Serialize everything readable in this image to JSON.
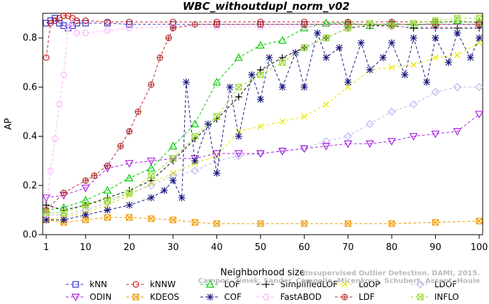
{
  "chart_data": {
    "type": "line",
    "title": "WBC_withoutdupl_norm_v02",
    "xlabel": "Neighborhood size",
    "ylabel": "AP",
    "xlim": [
      0,
      100
    ],
    "ylim": [
      0,
      0.9
    ],
    "xticks": [
      1,
      10,
      20,
      30,
      40,
      50,
      60,
      70,
      80,
      90,
      100
    ],
    "yticks": [
      0.0,
      0.2,
      0.4,
      0.6,
      0.8
    ],
    "ytick_labels": [
      "0.0",
      "0.2",
      "0.4",
      "0.6",
      "0.8"
    ],
    "grid": false,
    "legend_position": "bottom",
    "watermark": "Campos, Zimek, Sander, Campello, Micenkova, Schubert, Assent, Houle",
    "watermark_line1": "Unsupervised Outlier Detection. DAMI, 2015.",
    "series": [
      {
        "name": "kNN",
        "color": "#3333cc",
        "marker": "square",
        "x": [
          1,
          2,
          3,
          4,
          5,
          6,
          7,
          8,
          10,
          15,
          20,
          30,
          40,
          50,
          60,
          70,
          80,
          90,
          100
        ],
        "y": [
          0.86,
          0.87,
          0.88,
          0.86,
          0.85,
          0.84,
          0.85,
          0.86,
          0.86,
          0.86,
          0.855,
          0.855,
          0.855,
          0.855,
          0.855,
          0.855,
          0.855,
          0.855,
          0.855
        ]
      },
      {
        "name": "kNNW",
        "color": "#cc2222",
        "marker": "circle",
        "x": [
          1,
          2,
          3,
          4,
          5,
          6,
          7,
          8,
          10,
          15,
          20,
          30,
          40,
          50,
          60,
          70,
          80,
          90,
          100
        ],
        "y": [
          0.72,
          0.86,
          0.87,
          0.88,
          0.89,
          0.89,
          0.88,
          0.87,
          0.87,
          0.865,
          0.865,
          0.865,
          0.865,
          0.865,
          0.865,
          0.865,
          0.865,
          0.865,
          0.865
        ]
      },
      {
        "name": "LOF",
        "color": "#00cc00",
        "marker": "triangle",
        "x": [
          1,
          5,
          10,
          15,
          20,
          25,
          30,
          35,
          40,
          45,
          50,
          55,
          60,
          65,
          70,
          75,
          80,
          85,
          90,
          95,
          100
        ],
        "y": [
          0.1,
          0.11,
          0.14,
          0.18,
          0.23,
          0.27,
          0.36,
          0.45,
          0.62,
          0.72,
          0.77,
          0.79,
          0.84,
          0.86,
          0.86,
          0.85,
          0.86,
          0.85,
          0.86,
          0.87,
          0.86
        ]
      },
      {
        "name": "SimplifiedLOF",
        "color": "#000000",
        "marker": "plus",
        "x": [
          1,
          5,
          10,
          15,
          20,
          25,
          30,
          35,
          40,
          45,
          50,
          55,
          60,
          65,
          70,
          75,
          80,
          85,
          90,
          95,
          100
        ],
        "y": [
          0.12,
          0.1,
          0.12,
          0.15,
          0.18,
          0.22,
          0.3,
          0.39,
          0.47,
          0.56,
          0.67,
          0.72,
          0.76,
          0.8,
          0.84,
          0.85,
          0.85,
          0.84,
          0.84,
          0.84,
          0.84
        ]
      },
      {
        "name": "LoOP",
        "color": "#e6e600",
        "marker": "x",
        "x": [
          1,
          5,
          10,
          15,
          20,
          25,
          30,
          35,
          40,
          45,
          50,
          55,
          60,
          65,
          70,
          75,
          80,
          85,
          90,
          95,
          100
        ],
        "y": [
          0.06,
          0.07,
          0.09,
          0.12,
          0.16,
          0.21,
          0.25,
          0.29,
          0.32,
          0.42,
          0.44,
          0.46,
          0.48,
          0.53,
          0.6,
          0.67,
          0.68,
          0.69,
          0.72,
          0.73,
          0.78
        ]
      },
      {
        "name": "LDOF",
        "color": "#b8b8f0",
        "marker": "diamond",
        "x": [
          1,
          5,
          10,
          15,
          20,
          25,
          30,
          35,
          40,
          45,
          50,
          55,
          60,
          65,
          70,
          75,
          80,
          85,
          90,
          95,
          100
        ],
        "y": [
          0.08,
          0.08,
          0.1,
          0.13,
          0.17,
          0.2,
          0.24,
          0.26,
          0.3,
          0.32,
          0.33,
          0.34,
          0.35,
          0.38,
          0.4,
          0.45,
          0.5,
          0.53,
          0.58,
          0.6,
          0.6
        ]
      },
      {
        "name": "ODIN",
        "color": "#aa22dd",
        "marker": "triangle-down",
        "x": [
          1,
          5,
          10,
          15,
          20,
          25,
          30,
          35,
          40,
          45,
          50,
          55,
          60,
          65,
          70,
          75,
          80,
          85,
          90,
          95,
          100
        ],
        "y": [
          0.15,
          0.16,
          0.19,
          0.27,
          0.29,
          0.3,
          0.31,
          0.31,
          0.33,
          0.33,
          0.33,
          0.34,
          0.35,
          0.36,
          0.37,
          0.37,
          0.38,
          0.4,
          0.41,
          0.42,
          0.49
        ]
      },
      {
        "name": "KDEOS",
        "color": "#ee9900",
        "marker": "square-x",
        "x": [
          1,
          5,
          10,
          15,
          20,
          25,
          30,
          35,
          40,
          50,
          60,
          70,
          80,
          90,
          100
        ],
        "y": [
          0.06,
          0.05,
          0.06,
          0.07,
          0.07,
          0.065,
          0.06,
          0.05,
          0.045,
          0.045,
          0.045,
          0.045,
          0.045,
          0.05,
          0.055
        ]
      },
      {
        "name": "COF",
        "color": "#1a1a80",
        "marker": "asterisk",
        "x": [
          1,
          5,
          10,
          15,
          20,
          25,
          28,
          30,
          32,
          33,
          35,
          38,
          40,
          43,
          45,
          48,
          50,
          52,
          55,
          58,
          60,
          63,
          65,
          68,
          70,
          73,
          75,
          78,
          80,
          83,
          85,
          88,
          90,
          93,
          95,
          98,
          100
        ],
        "y": [
          0.06,
          0.06,
          0.08,
          0.1,
          0.12,
          0.15,
          0.18,
          0.22,
          0.15,
          0.62,
          0.3,
          0.45,
          0.25,
          0.6,
          0.4,
          0.65,
          0.55,
          0.72,
          0.6,
          0.74,
          0.6,
          0.82,
          0.72,
          0.76,
          0.62,
          0.78,
          0.67,
          0.72,
          0.78,
          0.65,
          0.8,
          0.62,
          0.8,
          0.7,
          0.82,
          0.72,
          0.8
        ]
      },
      {
        "name": "FastABOD",
        "color": "#ffb3ff",
        "marker": "circle",
        "x": [
          1,
          2,
          3,
          4,
          5,
          6,
          7,
          8,
          10,
          15,
          20,
          30,
          40,
          50,
          60,
          70,
          80,
          90,
          100
        ],
        "y": [
          0.08,
          0.26,
          0.39,
          0.53,
          0.65,
          0.84,
          0.86,
          0.82,
          0.82,
          0.83,
          0.84,
          0.845,
          0.845,
          0.845,
          0.845,
          0.845,
          0.845,
          0.845,
          0.845
        ]
      },
      {
        "name": "LDF",
        "color": "#b33333",
        "marker": "circle-plus",
        "x": [
          1,
          5,
          10,
          12,
          15,
          18,
          20,
          22,
          25,
          27,
          29,
          30,
          35,
          40,
          50,
          60,
          70,
          80,
          90,
          100
        ],
        "y": [
          0.1,
          0.17,
          0.22,
          0.24,
          0.28,
          0.36,
          0.42,
          0.5,
          0.61,
          0.72,
          0.8,
          0.84,
          0.855,
          0.855,
          0.855,
          0.855,
          0.855,
          0.855,
          0.855,
          0.855
        ]
      },
      {
        "name": "INFLO",
        "color": "#99dd33",
        "marker": "square-x",
        "x": [
          1,
          5,
          10,
          15,
          20,
          25,
          30,
          35,
          40,
          45,
          50,
          55,
          60,
          65,
          70,
          75,
          80,
          85,
          90,
          95,
          100
        ],
        "y": [
          0.09,
          0.09,
          0.12,
          0.14,
          0.17,
          0.24,
          0.31,
          0.4,
          0.48,
          0.6,
          0.65,
          0.7,
          0.76,
          0.8,
          0.84,
          0.86,
          0.85,
          0.86,
          0.87,
          0.88,
          0.88
        ]
      }
    ]
  }
}
